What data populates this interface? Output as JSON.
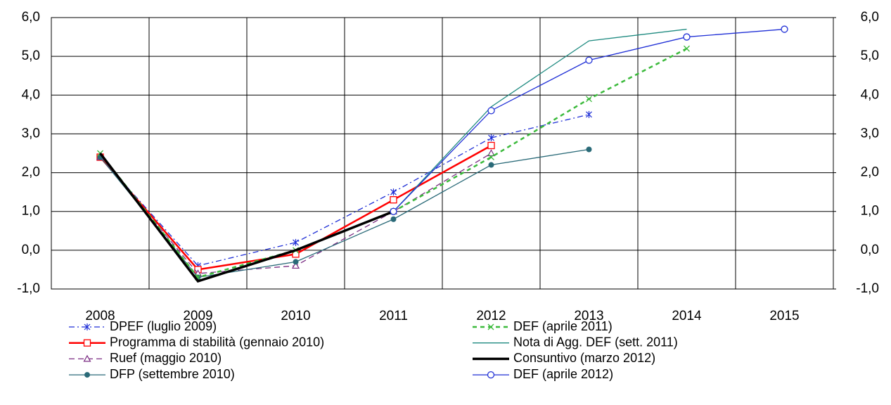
{
  "chart_data": {
    "type": "line",
    "categories": [
      "2008",
      "2009",
      "2010",
      "2011",
      "2012",
      "2013",
      "2014",
      "2015"
    ],
    "ylim": [
      -1,
      6
    ],
    "y2lim": [
      -1,
      6
    ],
    "yticks": [
      {
        "value": -1,
        "label": "-1,0"
      },
      {
        "value": 0,
        "label": "0,0"
      },
      {
        "value": 1,
        "label": "1,0"
      },
      {
        "value": 2,
        "label": "2,0"
      },
      {
        "value": 3,
        "label": "3,0"
      },
      {
        "value": 4,
        "label": "4,0"
      },
      {
        "value": 5,
        "label": "5,0"
      },
      {
        "value": 6,
        "label": "6,0"
      }
    ],
    "y2ticks": [
      {
        "value": -1,
        "label": "-1,0"
      },
      {
        "value": 0,
        "label": "0,0"
      },
      {
        "value": 1,
        "label": "1,0"
      },
      {
        "value": 2,
        "label": "2,0"
      },
      {
        "value": 3,
        "label": "3,0"
      },
      {
        "value": 4,
        "label": "4,0"
      },
      {
        "value": 5,
        "label": "5,0"
      },
      {
        "value": 6,
        "label": "6,0"
      }
    ],
    "grid": true,
    "series": [
      {
        "name": "DPEF (luglio 2009)",
        "color": "#1f2fd6",
        "dash": "8 4 2 4",
        "width": 1.3,
        "marker": "asterisk",
        "values": [
          2.4,
          -0.4,
          0.2,
          1.5,
          2.9,
          3.5,
          null,
          null
        ]
      },
      {
        "name": "Programma di stabilità (gennaio 2010)",
        "color": "#ff0000",
        "dash": "none",
        "width": 2.5,
        "marker": "square",
        "values": [
          2.4,
          -0.5,
          -0.1,
          1.3,
          2.7,
          null,
          null,
          null
        ]
      },
      {
        "name": "Ruef (maggio 2010)",
        "color": "#7b2c83",
        "dash": "8 5",
        "width": 1.3,
        "marker": "triangle",
        "values": [
          2.4,
          -0.6,
          -0.4,
          1.0,
          2.5,
          null,
          null,
          null
        ]
      },
      {
        "name": "DFP (settembre 2010)",
        "color": "#2a6a78",
        "dash": "none",
        "width": 1.3,
        "marker": "dot",
        "values": [
          2.4,
          -0.7,
          -0.3,
          0.8,
          2.2,
          2.6,
          null,
          null
        ]
      },
      {
        "name": "DEF (aprile 2011)",
        "color": "#3cba3c",
        "dash": "6 5",
        "width": 2.5,
        "marker": "cross",
        "values": [
          2.5,
          -0.7,
          0.0,
          1.0,
          2.4,
          3.9,
          5.2,
          null
        ]
      },
      {
        "name": "Nota di Agg. DEF (sett. 2011)",
        "color": "#1e8a80",
        "dash": "none",
        "width": 1.3,
        "marker": "none",
        "values": [
          null,
          null,
          null,
          1.0,
          3.7,
          5.4,
          5.7,
          null
        ]
      },
      {
        "name": "Consuntivo (marzo 2012)",
        "color": "#000000",
        "dash": "none",
        "width": 3.5,
        "marker": "none",
        "values": [
          2.5,
          -0.8,
          0.0,
          1.0,
          null,
          null,
          null,
          null
        ]
      },
      {
        "name": "DEF (aprile 2012)",
        "color": "#1f2fd6",
        "dash": "none",
        "width": 1.3,
        "marker": "circle",
        "values": [
          null,
          null,
          null,
          1.0,
          3.6,
          4.9,
          5.5,
          5.7
        ]
      }
    ]
  }
}
